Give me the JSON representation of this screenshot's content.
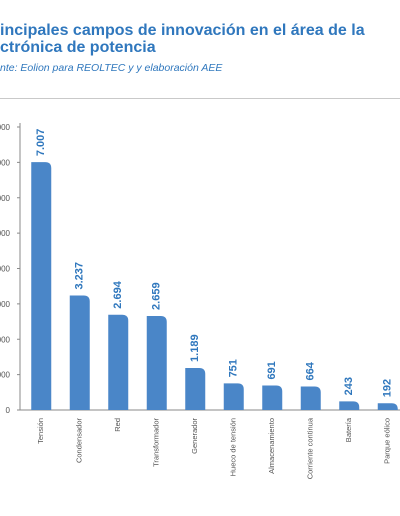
{
  "header": {
    "title_line1": "incipales campos de innovación en el área de la",
    "title_line2": "ctrónica de potencia",
    "subtitle": "nte: Eolion para REOLTEC y y elaboración AEE"
  },
  "colors": {
    "bar": "#4a86c8",
    "title": "#2f77bd",
    "value_label": "#2f77bd",
    "axis": "#555555"
  },
  "chart_data": {
    "type": "bar",
    "title": "incipales campos de innovación en el área de la ctrónica de potencia",
    "xlabel": "",
    "ylabel": "",
    "ylim": [
      0,
      8000
    ],
    "yticks": [
      0,
      1000,
      2000,
      3000,
      4000,
      5000,
      6000,
      7000,
      8000
    ],
    "ytick_labels": [
      "0",
      "000",
      "000",
      "000",
      "000",
      "000",
      "000",
      "000",
      "000"
    ],
    "categories": [
      "Tensión",
      "Condensador",
      "Red",
      "Transformador",
      "Generador",
      "Hueco de tensión",
      "Almacenamiento",
      "Corriente continua",
      "Batería",
      "Parque eólico"
    ],
    "values": [
      7007,
      3237,
      2694,
      2659,
      1189,
      751,
      691,
      664,
      243,
      192
    ],
    "value_labels": [
      "7.007",
      "3.237",
      "2.694",
      "2.659",
      "1.189",
      "751",
      "691",
      "664",
      "243",
      "192"
    ],
    "grid": false,
    "legend": "none"
  }
}
